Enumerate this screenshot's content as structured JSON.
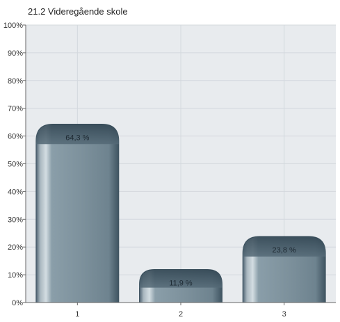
{
  "chart_data": {
    "type": "bar",
    "title": "21.2 Videregående skole",
    "categories": [
      "1",
      "2",
      "3"
    ],
    "values": [
      64.3,
      11.9,
      23.8
    ],
    "data_labels": [
      "64,3 %",
      "11,9 %",
      "23,8 %"
    ],
    "ylim": [
      0,
      100
    ],
    "yticks": [
      0,
      10,
      20,
      30,
      40,
      50,
      60,
      70,
      80,
      90,
      100
    ],
    "ytick_labels": [
      "0%",
      "10%",
      "20%",
      "30%",
      "40%",
      "50%",
      "60%",
      "70%",
      "80%",
      "90%",
      "100%"
    ],
    "grid": true,
    "legend": "none",
    "colors": {
      "plot_background": "#e8ebee",
      "grid": "#d3d8dd",
      "bar_body": "#7d919c",
      "bar_dark": "#3f5461",
      "bar_highlight": "#c7d2d8",
      "axis": "#666666"
    }
  }
}
